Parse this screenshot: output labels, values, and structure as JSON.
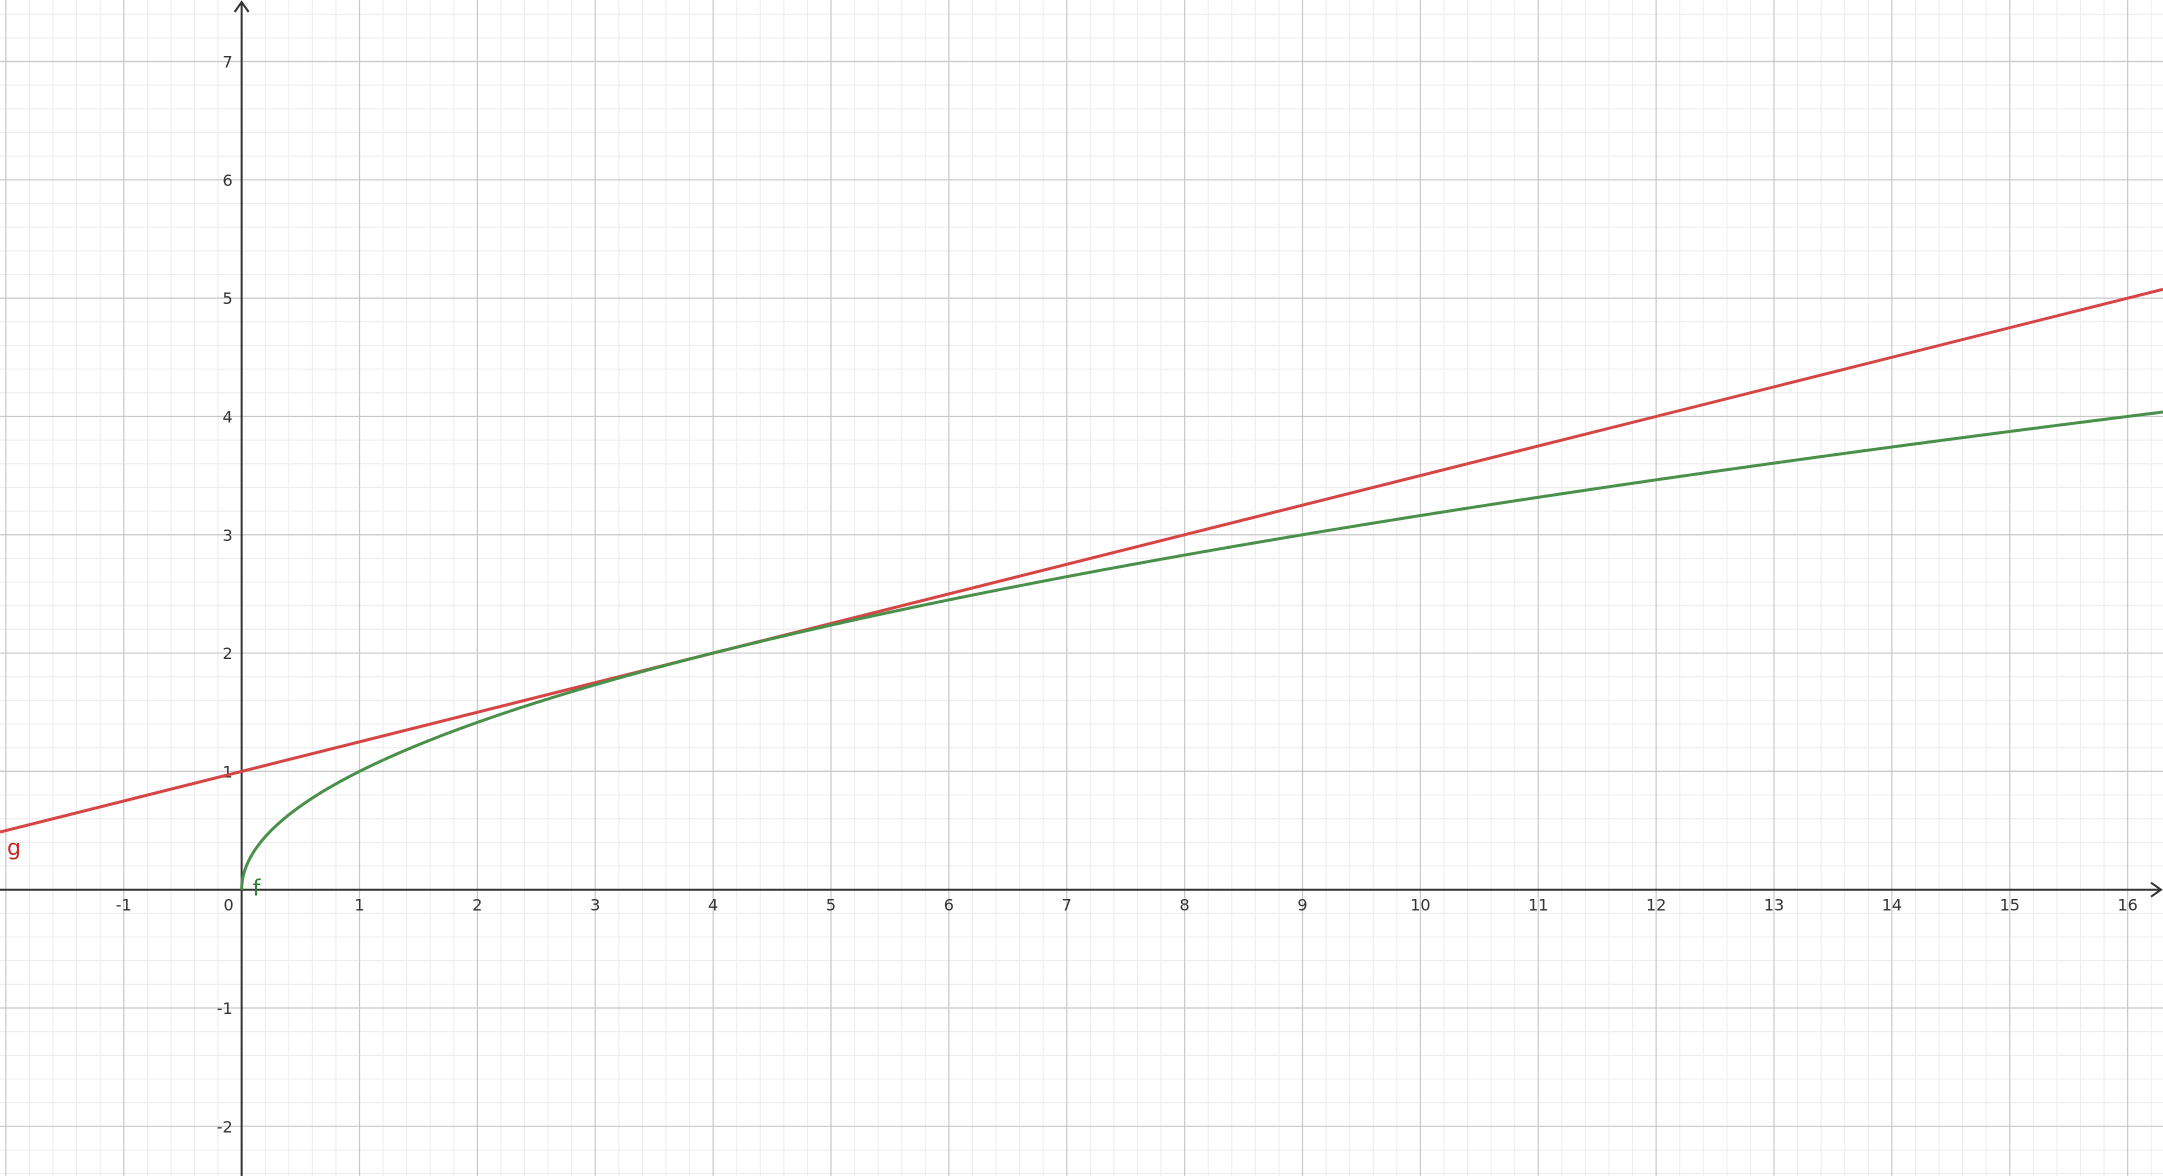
{
  "chart_data": {
    "type": "line",
    "xlim": [
      -2.05,
      16.3
    ],
    "ylim": [
      -2.42,
      7.52
    ],
    "grid": true,
    "minor_grid": true,
    "x_ticks": [
      -1,
      0,
      1,
      2,
      3,
      4,
      5,
      6,
      7,
      8,
      9,
      10,
      11,
      12,
      13,
      14,
      15,
      16
    ],
    "x_tick_labels": [
      "-1",
      "0",
      "1",
      "2",
      "3",
      "4",
      "5",
      "6",
      "7",
      "8",
      "9",
      "10",
      "11",
      "12",
      "13",
      "14",
      "15",
      "16"
    ],
    "y_ticks": [
      -2,
      -1,
      1,
      2,
      3,
      4,
      5,
      6,
      7
    ],
    "y_tick_labels": [
      "-2",
      "-1",
      "1",
      "2",
      "3",
      "4",
      "5",
      "6",
      "7"
    ],
    "series": [
      {
        "name": "f",
        "function": "sqrt(x)",
        "x": [
          0,
          0.05,
          0.25,
          0.5,
          1,
          2,
          3,
          4,
          5,
          6,
          7,
          8,
          9,
          10,
          11,
          12,
          13,
          14,
          15,
          16,
          16.3
        ],
        "y": [
          0,
          0.224,
          0.5,
          0.707,
          1,
          1.414,
          1.732,
          2,
          2.236,
          2.449,
          2.646,
          2.828,
          3,
          3.162,
          3.317,
          3.464,
          3.606,
          3.742,
          3.873,
          4,
          4.037
        ],
        "color": "#4a8f4a",
        "label_color": "#2e7d32"
      },
      {
        "name": "g",
        "function": "x/4 + 1",
        "x": [
          -2.05,
          16.3
        ],
        "y": [
          0.4875,
          5.075
        ],
        "color": "#d64545",
        "label_color": "#c62828"
      }
    ],
    "colors": {
      "axis": "#333333",
      "major_grid": "#c8c8c8",
      "minor_grid": "#ececec"
    }
  }
}
